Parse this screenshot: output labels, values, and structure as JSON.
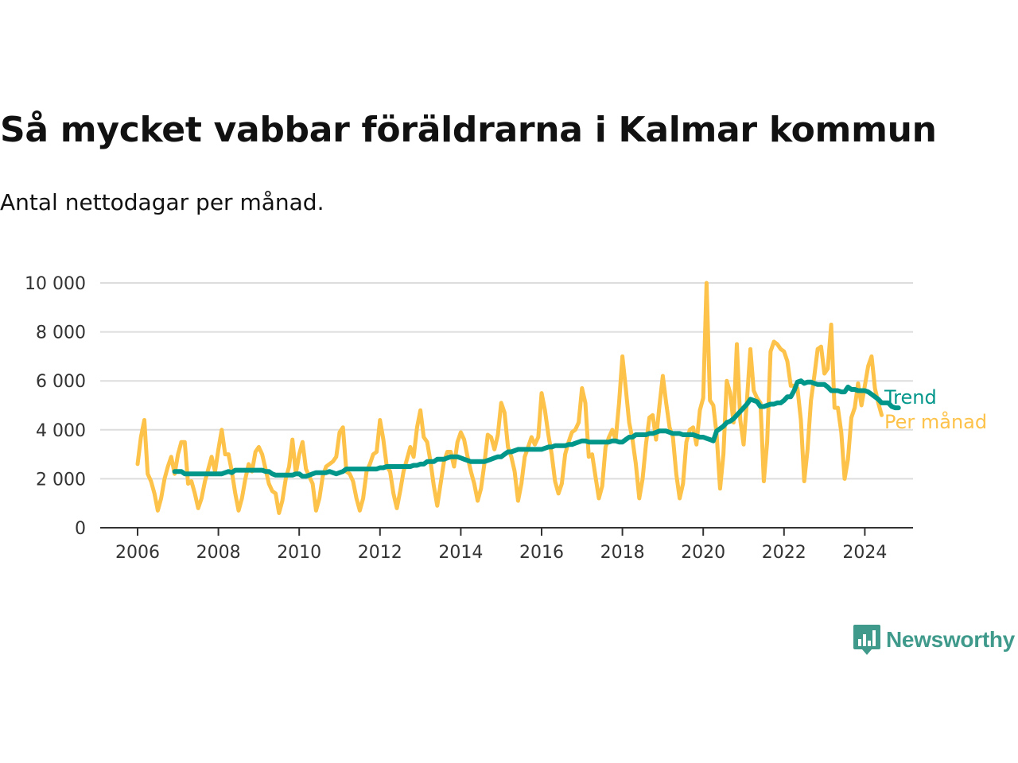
{
  "header": {
    "title": "Så mycket vabbar föräldrarna i Kalmar kommun",
    "subtitle": "Antal nettodagar per månad."
  },
  "brand": {
    "name": "Newsworthy",
    "color": "#3f9a8c"
  },
  "colors": {
    "monthly": "#fdc24a",
    "trend": "#00968a",
    "grid": "#dddddd",
    "axis": "#333333"
  },
  "chart_data": {
    "type": "line",
    "x_unit": "year",
    "xlim": [
      2005.1,
      2025.25
    ],
    "ylim": [
      0,
      10000
    ],
    "x_ticks": [
      2006,
      2008,
      2010,
      2012,
      2014,
      2016,
      2018,
      2020,
      2022,
      2024
    ],
    "x_tick_labels": [
      "2006",
      "2008",
      "2010",
      "2012",
      "2014",
      "2016",
      "2018",
      "2020",
      "2022",
      "2024"
    ],
    "y_ticks": [
      0,
      2000,
      4000,
      6000,
      8000,
      10000
    ],
    "y_tick_labels": [
      "0",
      "2 000",
      "4 000",
      "6 000",
      "8 000",
      "10 000"
    ],
    "grid": true,
    "series": [
      {
        "name": "Per månad",
        "color": "#fdc24a",
        "start": "2006-01",
        "values": [
          2600,
          3700,
          4400,
          2200,
          1900,
          1400,
          700,
          1200,
          2000,
          2500,
          2900,
          2200,
          3000,
          3500,
          3500,
          1800,
          1900,
          1400,
          800,
          1200,
          1900,
          2400,
          2900,
          2300,
          3200,
          4000,
          3000,
          3000,
          2300,
          1400,
          700,
          1200,
          2000,
          2600,
          2300,
          3100,
          3300,
          3000,
          2400,
          1800,
          1500,
          1400,
          600,
          1100,
          2000,
          2500,
          3600,
          2200,
          3000,
          3500,
          2400,
          2100,
          1800,
          700,
          1200,
          2100,
          2500,
          2600,
          2700,
          2900,
          3900,
          4100,
          2300,
          2200,
          1900,
          1200,
          700,
          1200,
          2300,
          2600,
          3000,
          3100,
          4400,
          3600,
          2500,
          2300,
          1400,
          800,
          1500,
          2300,
          2800,
          3300,
          2900,
          4100,
          4800,
          3700,
          3500,
          2700,
          1700,
          900,
          1800,
          2700,
          3100,
          3100,
          2500,
          3500,
          3900,
          3600,
          2900,
          2300,
          1800,
          1100,
          1600,
          2600,
          3800,
          3700,
          3200,
          3800,
          5100,
          4700,
          3300,
          2900,
          2300,
          1100,
          1800,
          2900,
          3300,
          3700,
          3400,
          3700,
          5500,
          4800,
          3800,
          3000,
          1900,
          1400,
          1800,
          3000,
          3500,
          3900,
          4000,
          4300,
          5700,
          5100,
          2900,
          3000,
          2100,
          1200,
          1700,
          3300,
          3700,
          4000,
          3600,
          5100,
          7000,
          5700,
          4300,
          3600,
          2600,
          1200,
          2000,
          3400,
          4500,
          4600,
          3600,
          5000,
          6200,
          5100,
          4100,
          3700,
          2200,
          1200,
          1800,
          3500,
          4000,
          4100,
          3400,
          4800,
          5300,
          10000,
          5200,
          5000,
          3800,
          1600,
          3000,
          6000,
          5500,
          4300,
          7500,
          4400,
          3400,
          5200,
          7300,
          5600,
          5300,
          5100,
          1900,
          3500,
          7200,
          7600,
          7500,
          7300,
          7200,
          6800,
          5800,
          5800,
          5700,
          4400,
          1900,
          3200,
          5200,
          6200,
          7300,
          7400,
          6300,
          6500,
          8300,
          4900,
          4900,
          3900,
          2000,
          2800,
          4500,
          4900,
          5900,
          5000,
          5800,
          6600,
          7000,
          5700,
          5100,
          4600
        ]
      },
      {
        "name": "Trend",
        "color": "#00968a",
        "start": "2006-12",
        "values": [
          2300,
          2300,
          2300,
          2200,
          2200,
          2200,
          2200,
          2200,
          2200,
          2200,
          2200,
          2200,
          2200,
          2200,
          2200,
          2250,
          2300,
          2250,
          2350,
          2350,
          2350,
          2350,
          2350,
          2350,
          2350,
          2350,
          2350,
          2300,
          2300,
          2200,
          2150,
          2150,
          2150,
          2150,
          2150,
          2150,
          2200,
          2200,
          2100,
          2100,
          2150,
          2200,
          2250,
          2250,
          2250,
          2250,
          2300,
          2250,
          2200,
          2250,
          2300,
          2400,
          2400,
          2400,
          2400,
          2400,
          2400,
          2400,
          2400,
          2400,
          2400,
          2450,
          2450,
          2500,
          2500,
          2500,
          2500,
          2500,
          2500,
          2500,
          2500,
          2550,
          2550,
          2600,
          2600,
          2700,
          2700,
          2700,
          2800,
          2800,
          2800,
          2850,
          2900,
          2900,
          2900,
          2850,
          2800,
          2750,
          2700,
          2700,
          2700,
          2700,
          2700,
          2750,
          2800,
          2850,
          2900,
          2900,
          3000,
          3100,
          3100,
          3150,
          3200,
          3200,
          3200,
          3200,
          3200,
          3200,
          3200,
          3200,
          3250,
          3300,
          3300,
          3350,
          3350,
          3350,
          3350,
          3400,
          3400,
          3450,
          3500,
          3550,
          3550,
          3500,
          3500,
          3500,
          3500,
          3500,
          3500,
          3500,
          3550,
          3550,
          3500,
          3500,
          3600,
          3700,
          3700,
          3800,
          3800,
          3800,
          3800,
          3850,
          3850,
          3900,
          3950,
          3950,
          3950,
          3900,
          3850,
          3850,
          3850,
          3800,
          3800,
          3800,
          3800,
          3750,
          3700,
          3700,
          3650,
          3600,
          3550,
          3950,
          4050,
          4150,
          4300,
          4350,
          4450,
          4600,
          4750,
          4900,
          5050,
          5250,
          5200,
          5150,
          4950,
          4950,
          5000,
          5050,
          5050,
          5100,
          5100,
          5200,
          5350,
          5350,
          5600,
          5950,
          6000,
          5900,
          5950,
          5950,
          5900,
          5850,
          5850,
          5850,
          5750,
          5600,
          5600,
          5600,
          5550,
          5550,
          5750,
          5650,
          5650,
          5600,
          5600,
          5600,
          5550,
          5450,
          5350,
          5250,
          5100,
          5100,
          5100,
          4950,
          4900,
          4900
        ]
      }
    ],
    "annotations": {
      "trend_label": "Trend",
      "monthly_label": "Per månad"
    }
  }
}
